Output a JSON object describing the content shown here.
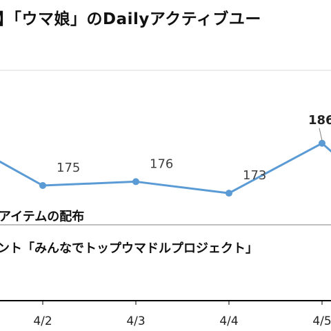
{
  "title": "】「ウマ娘」のDailyアクティブユー",
  "annotations": [
    "アイテムの配布",
    "ント「みんなでトップウマドルプロジェクト」"
  ],
  "colors": {
    "line": "#5b9bd5",
    "axis": "#000000",
    "gridline": "#d9d9d9",
    "label": "#404040"
  },
  "chart_data": {
    "type": "line",
    "title": "】「ウマ娘」のDailyアクティブユー",
    "categories": [
      "4/2",
      "4/3",
      "4/4",
      "4/5"
    ],
    "series": [
      {
        "values": [
          175,
          176,
          173,
          186
        ]
      }
    ],
    "data_labels": [
      "175",
      "176",
      "173",
      "186"
    ],
    "highlighted_index": 3,
    "ylim": [
      145,
      205
    ],
    "grid": true
  }
}
